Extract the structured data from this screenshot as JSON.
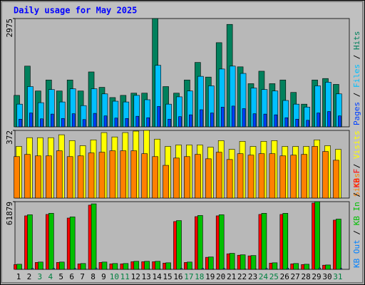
{
  "title": "Daily usage for May 2025",
  "title_color": "#0000ff",
  "legend_separator": " / ",
  "categories": [
    "1",
    "2",
    "3",
    "4",
    "5",
    "6",
    "7",
    "8",
    "9",
    "10",
    "11",
    "12",
    "13",
    "14",
    "15",
    "16",
    "17",
    "18",
    "19",
    "20",
    "21",
    "22",
    "23",
    "24",
    "25",
    "26",
    "27",
    "28",
    "29",
    "30",
    "31"
  ],
  "category_colors": [
    "#000000",
    "#000000",
    "#008040",
    "#008040",
    "#000000",
    "#000000",
    "#000000",
    "#000000",
    "#000000",
    "#008040",
    "#008040",
    "#000000",
    "#000000",
    "#000000",
    "#000000",
    "#000000",
    "#008040",
    "#008040",
    "#000000",
    "#000000",
    "#000000",
    "#000000",
    "#000000",
    "#008040",
    "#008040",
    "#000000",
    "#000000",
    "#000000",
    "#000000",
    "#000000",
    "#008040"
  ],
  "chart_data": [
    {
      "type": "bar",
      "ylim": [
        0,
        2975
      ],
      "yticks": [
        2975
      ],
      "series": [
        {
          "name": "Hits",
          "color": "#00805c",
          "values": [
            864,
            1668,
            985,
            1287,
            985,
            1287,
            985,
            1508,
            1085,
            804,
            864,
            925,
            925,
            2975,
            1106,
            925,
            1287,
            1769,
            1367,
            2312,
            2814,
            1648,
            1186,
            1528,
            1186,
            1287,
            945,
            623,
            1287,
            1327,
            1166
          ]
        },
        {
          "name": "Files",
          "color": "#00c0ff",
          "values": [
            623,
            1106,
            663,
            1025,
            683,
            1045,
            583,
            1045,
            905,
            704,
            683,
            864,
            744,
            1689,
            623,
            824,
            985,
            1387,
            1126,
            1588,
            1668,
            1467,
            1065,
            1025,
            985,
            724,
            623,
            543,
            1126,
            1226,
            905
          ]
        },
        {
          "name": "Pages",
          "color": "#0040ff",
          "values": [
            210,
            380,
            220,
            350,
            230,
            360,
            200,
            370,
            300,
            240,
            230,
            290,
            250,
            560,
            210,
            280,
            330,
            470,
            380,
            540,
            570,
            500,
            360,
            350,
            330,
            250,
            210,
            180,
            380,
            420,
            300
          ]
        }
      ]
    },
    {
      "type": "bar",
      "ylim": [
        0,
        372
      ],
      "yticks": [
        372
      ],
      "series": [
        {
          "name": "Visits",
          "color": "#ffff00",
          "values": [
            284,
            332,
            332,
            332,
            348,
            316,
            288,
            320,
            360,
            336,
            360,
            368,
            372,
            324,
            284,
            292,
            292,
            292,
            280,
            316,
            268,
            312,
            284,
            312,
            316,
            284,
            284,
            284,
            320,
            288,
            268
          ]
        },
        {
          "name": "Sites",
          "color": "#ff8000",
          "values": [
            228,
            240,
            232,
            232,
            260,
            228,
            232,
            248,
            252,
            260,
            260,
            260,
            244,
            228,
            180,
            220,
            228,
            240,
            216,
            252,
            212,
            244,
            236,
            244,
            244,
            232,
            236,
            240,
            284,
            256,
            208
          ]
        }
      ]
    },
    {
      "type": "bar",
      "ylim": [
        0,
        61879
      ],
      "yticks": [
        61879
      ],
      "series": [
        {
          "name": "KB F",
          "color": "#ff0000",
          "values": [
            4400,
            48900,
            6300,
            50200,
            6300,
            46900,
            5000,
            58700,
            6300,
            5000,
            5000,
            7000,
            7000,
            7000,
            5700,
            43700,
            6300,
            48200,
            11000,
            48900,
            14200,
            12900,
            12300,
            50200,
            5700,
            50200,
            5000,
            4400,
            60600,
            3800,
            45000
          ]
        },
        {
          "name": "KB In",
          "color": "#00c000",
          "values": [
            4658,
            49903,
            6654,
            51234,
            6654,
            47907,
            5323,
            59883,
            6654,
            5323,
            5323,
            7319,
            7319,
            7319,
            5988,
            44580,
            6654,
            49238,
            11311,
            49903,
            14638,
            13307,
            12642,
            51234,
            5988,
            51234,
            5323,
            4658,
            61879,
            3992,
            45911
          ]
        },
        {
          "name": "KB Out",
          "color": "#0080ff",
          "values": [
            90,
            1000,
            130,
            1020,
            130,
            960,
            110,
            1200,
            130,
            110,
            110,
            150,
            150,
            150,
            120,
            890,
            130,
            980,
            230,
            1000,
            290,
            270,
            250,
            1020,
            120,
            1020,
            110,
            90,
            1240,
            80,
            920
          ]
        }
      ]
    }
  ]
}
